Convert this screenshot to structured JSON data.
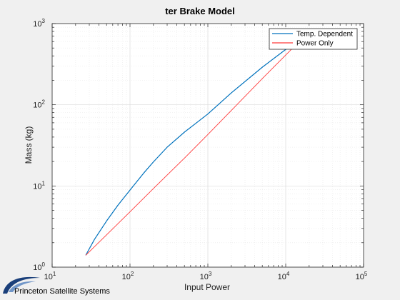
{
  "chart_data": {
    "type": "line",
    "title": "ter Brake Model",
    "xlabel": "Input Power",
    "ylabel": "Mass (kg)",
    "xscale": "log",
    "yscale": "log",
    "xlim": [
      10,
      100000
    ],
    "ylim": [
      1,
      1000
    ],
    "xticks": [
      10,
      100,
      1000,
      10000,
      100000
    ],
    "yticks": [
      1,
      10,
      100,
      1000
    ],
    "grid": true,
    "legend_position": "top-right",
    "series": [
      {
        "name": "Temp. Dependent",
        "color": "#0072bd",
        "x": [
          27,
          35,
          50,
          70,
          100,
          150,
          200,
          300,
          500,
          700,
          1000,
          2000,
          5000,
          10000,
          20000
        ],
        "y": [
          1.4,
          2.2,
          3.7,
          5.8,
          8.9,
          14.4,
          19.8,
          30,
          46,
          59,
          77,
          140,
          290,
          480,
          780
        ]
      },
      {
        "name": "Power Only",
        "color": "#ff3b3b",
        "x": [
          27,
          50,
          100,
          200,
          500,
          1000,
          2000,
          5000,
          10000,
          20000
        ],
        "y": [
          1.4,
          2.5,
          4.8,
          9.3,
          22,
          43,
          85,
          210,
          410,
          800
        ]
      }
    ]
  },
  "logo": {
    "text": "Princeton Satellite Systems",
    "color": "#1a3f7a"
  }
}
